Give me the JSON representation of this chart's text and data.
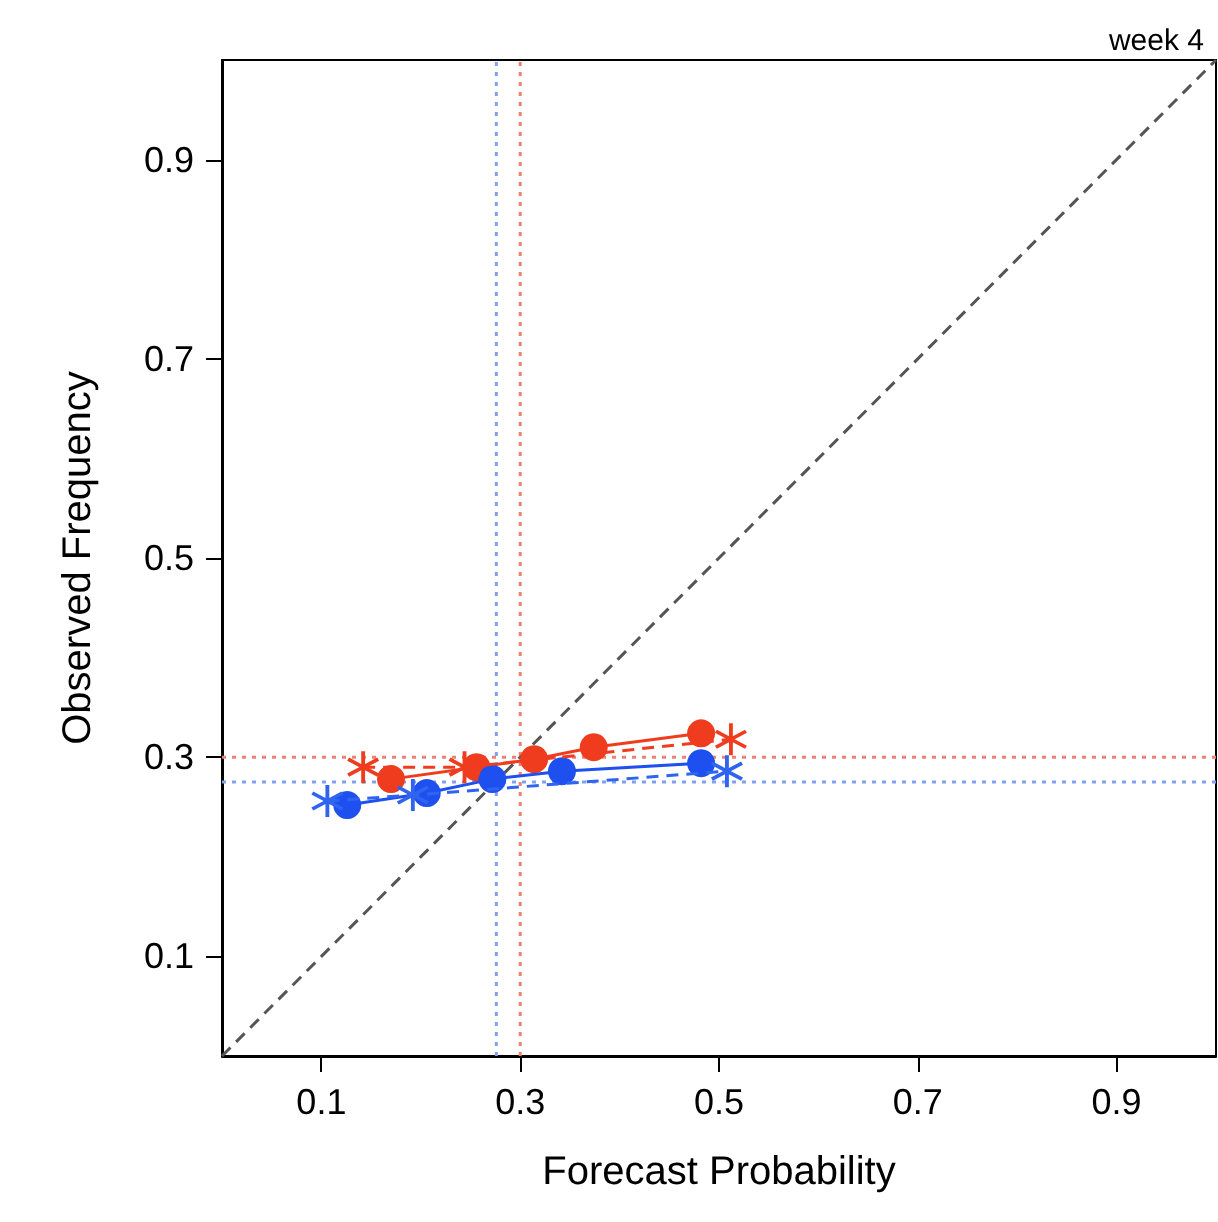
{
  "chart_data": {
    "type": "line",
    "title": "week 4",
    "xlabel": "Forecast Probability",
    "ylabel": "Observed Frequency",
    "xlim": [
      0,
      1
    ],
    "ylim": [
      0,
      1
    ],
    "xticks": [
      0.1,
      0.3,
      0.5,
      0.7,
      0.9
    ],
    "yticks": [
      0.1,
      0.3,
      0.5,
      0.7,
      0.9
    ],
    "grid": false,
    "series": [
      {
        "color": "#555555",
        "x": [
          0,
          1
        ],
        "values": [
          0,
          1
        ],
        "line_style": "dashed",
        "marker": "none"
      },
      {
        "color": "#f03c1e",
        "x": [
          0.142,
          0.244,
          0.512
        ],
        "values": [
          0.29,
          0.29,
          0.318
        ],
        "line_style": "dashed",
        "marker": "cross"
      },
      {
        "color": "#f03c1e",
        "x": [
          0.17,
          0.256,
          0.314,
          0.374,
          0.482
        ],
        "values": [
          0.278,
          0.29,
          0.298,
          0.31,
          0.324
        ],
        "line_style": "solid",
        "marker": "circle"
      },
      {
        "color": "#2f64f0",
        "x": [
          0.106,
          0.192,
          0.508
        ],
        "values": [
          0.256,
          0.262,
          0.286
        ],
        "line_style": "dashed",
        "marker": "cross"
      },
      {
        "color": "#1e50f0",
        "x": [
          0.126,
          0.206,
          0.272,
          0.342,
          0.482
        ],
        "values": [
          0.252,
          0.264,
          0.278,
          0.286,
          0.294
        ],
        "line_style": "solid",
        "marker": "circle"
      }
    ],
    "ref_lines": [
      {
        "axis": "y",
        "value": 0.3,
        "color": "#f08070",
        "line_style": "dotted"
      },
      {
        "axis": "y",
        "value": 0.275,
        "color": "#80a0f0",
        "line_style": "dotted"
      },
      {
        "axis": "x",
        "value": 0.3,
        "color": "#f08070",
        "line_style": "dotted"
      },
      {
        "axis": "x",
        "value": 0.276,
        "color": "#80a0f0",
        "line_style": "dotted"
      }
    ]
  }
}
